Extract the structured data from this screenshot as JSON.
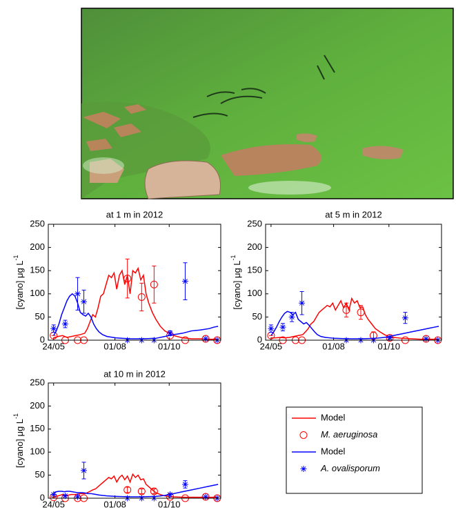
{
  "chart_data": [
    {
      "type": "line",
      "title": "at 1 m in 2012",
      "ylabel": "[cyano] μg L",
      "ylabel_superscript": "-1",
      "xlim": [
        139,
        333
      ],
      "xticks": [
        {
          "value": 145,
          "label": "24/05"
        },
        {
          "value": 214,
          "label": "01/08"
        },
        {
          "value": 275,
          "label": "01/10"
        }
      ],
      "ylim": [
        0,
        250
      ],
      "yticks": [
        0,
        50,
        100,
        150,
        200,
        250
      ],
      "grid": false,
      "series": [
        {
          "color": "#ff0000",
          "style": "line",
          "x": [
            145,
            150,
            155,
            160,
            165,
            170,
            175,
            180,
            183,
            186,
            189,
            192,
            195,
            198,
            201,
            204,
            207,
            210,
            213,
            216,
            219,
            222,
            225,
            228,
            231,
            234,
            237,
            240,
            243,
            246,
            249,
            252,
            256,
            260,
            265,
            270,
            275,
            280,
            290,
            300,
            310,
            320,
            330
          ],
          "values": [
            5,
            8,
            10,
            6,
            8,
            10,
            12,
            15,
            25,
            40,
            55,
            50,
            70,
            95,
            100,
            120,
            140,
            135,
            145,
            110,
            140,
            150,
            120,
            140,
            100,
            150,
            145,
            155,
            130,
            140,
            100,
            80,
            60,
            45,
            30,
            20,
            15,
            10,
            5,
            3,
            3,
            2,
            2
          ]
        },
        {
          "color": "#ff0000",
          "style": "circle",
          "x": [
            145,
            158,
            172,
            179,
            228,
            244,
            258,
            276,
            293,
            316,
            329
          ],
          "values": [
            10,
            0,
            0,
            0,
            133,
            93,
            120,
            10,
            0,
            3,
            0
          ],
          "errors": [
            0,
            0,
            0,
            0,
            42,
            30,
            40,
            0,
            0,
            0,
            0
          ]
        },
        {
          "color": "#0000ff",
          "style": "line",
          "x": [
            145,
            148,
            151,
            154,
            157,
            160,
            163,
            166,
            169,
            172,
            175,
            178,
            181,
            184,
            187,
            190,
            193,
            196,
            200,
            205,
            215,
            230,
            245,
            260,
            270,
            280,
            290,
            300,
            310,
            320,
            325,
            330
          ],
          "values": [
            10,
            20,
            35,
            55,
            70,
            85,
            95,
            100,
            95,
            80,
            60,
            55,
            52,
            58,
            50,
            35,
            25,
            18,
            12,
            8,
            5,
            3,
            3,
            4,
            8,
            12,
            15,
            20,
            22,
            25,
            28,
            30
          ]
        },
        {
          "color": "#0000ff",
          "style": "asterisk",
          "x": [
            145,
            158,
            172,
            179,
            228,
            244,
            258,
            276,
            293,
            316,
            329
          ],
          "values": [
            25,
            35,
            100,
            83,
            0,
            0,
            0,
            15,
            127,
            3,
            0
          ],
          "errors": [
            8,
            8,
            35,
            25,
            0,
            0,
            0,
            5,
            40,
            0,
            0
          ]
        }
      ]
    },
    {
      "type": "line",
      "title": "at 5 m in 2012",
      "ylabel": "[cyano] μg L",
      "ylabel_superscript": "-1",
      "xlim": [
        139,
        333
      ],
      "xticks": [
        {
          "value": 145,
          "label": "24/05"
        },
        {
          "value": 214,
          "label": "01/08"
        },
        {
          "value": 275,
          "label": "01/10"
        }
      ],
      "ylim": [
        0,
        250
      ],
      "yticks": [
        0,
        50,
        100,
        150,
        200,
        250
      ],
      "grid": false,
      "series": [
        {
          "color": "#ff0000",
          "style": "line",
          "x": [
            145,
            150,
            155,
            160,
            165,
            170,
            175,
            180,
            183,
            186,
            189,
            192,
            195,
            198,
            201,
            204,
            207,
            210,
            213,
            216,
            219,
            222,
            225,
            228,
            231,
            234,
            237,
            240,
            243,
            246,
            249,
            252,
            256,
            260,
            265,
            270,
            275,
            280,
            290,
            300,
            310,
            320,
            330
          ],
          "values": [
            5,
            5,
            6,
            5,
            6,
            8,
            10,
            12,
            18,
            25,
            35,
            40,
            50,
            60,
            65,
            70,
            75,
            72,
            80,
            65,
            75,
            85,
            70,
            80,
            65,
            90,
            80,
            85,
            70,
            72,
            55,
            45,
            35,
            25,
            18,
            12,
            8,
            6,
            4,
            3,
            2,
            2,
            2
          ]
        },
        {
          "color": "#ff0000",
          "style": "circle",
          "x": [
            145,
            158,
            172,
            179,
            228,
            244,
            258,
            276,
            293,
            316,
            329
          ],
          "values": [
            10,
            0,
            0,
            0,
            65,
            60,
            10,
            5,
            0,
            3,
            0
          ],
          "errors": [
            0,
            0,
            0,
            0,
            15,
            15,
            8,
            0,
            0,
            0,
            0
          ]
        },
        {
          "color": "#0000ff",
          "style": "line",
          "x": [
            145,
            148,
            151,
            154,
            157,
            160,
            163,
            166,
            169,
            172,
            175,
            178,
            181,
            184,
            187,
            190,
            193,
            196,
            200,
            205,
            215,
            230,
            245,
            260,
            270,
            280,
            290,
            300,
            310,
            320,
            325,
            330
          ],
          "values": [
            10,
            18,
            28,
            40,
            50,
            58,
            62,
            60,
            55,
            60,
            45,
            40,
            35,
            38,
            32,
            25,
            18,
            12,
            8,
            6,
            4,
            3,
            3,
            4,
            6,
            10,
            14,
            18,
            22,
            26,
            28,
            30
          ]
        },
        {
          "color": "#0000ff",
          "style": "asterisk",
          "x": [
            145,
            158,
            168,
            179,
            228,
            244,
            258,
            276,
            293,
            316,
            329
          ],
          "values": [
            25,
            28,
            50,
            80,
            0,
            0,
            0,
            5,
            48,
            3,
            0
          ],
          "errors": [
            8,
            8,
            10,
            25,
            0,
            0,
            0,
            0,
            12,
            0,
            0
          ]
        }
      ]
    },
    {
      "type": "line",
      "title": "at 10 m in 2012",
      "ylabel": "[cyano] μg L",
      "ylabel_superscript": "-1",
      "xlim": [
        139,
        333
      ],
      "xticks": [
        {
          "value": 145,
          "label": "24/05"
        },
        {
          "value": 214,
          "label": "01/08"
        },
        {
          "value": 275,
          "label": "01/10"
        }
      ],
      "ylim": [
        0,
        250
      ],
      "yticks": [
        0,
        50,
        100,
        150,
        200,
        250
      ],
      "grid": false,
      "legend": "outside-right",
      "series": [
        {
          "name": "Model",
          "color": "#ff0000",
          "style": "line",
          "x": [
            145,
            150,
            155,
            160,
            165,
            170,
            175,
            180,
            183,
            186,
            189,
            192,
            195,
            198,
            201,
            204,
            207,
            210,
            213,
            216,
            219,
            222,
            225,
            228,
            231,
            234,
            237,
            240,
            243,
            246,
            249,
            252,
            256,
            260,
            265,
            270,
            275,
            280,
            290,
            300,
            310,
            320,
            330
          ],
          "values": [
            3,
            5,
            8,
            6,
            8,
            8,
            10,
            10,
            12,
            15,
            18,
            20,
            25,
            30,
            35,
            40,
            45,
            42,
            48,
            35,
            45,
            50,
            40,
            48,
            35,
            52,
            45,
            50,
            40,
            42,
            30,
            25,
            18,
            12,
            8,
            5,
            4,
            3,
            2,
            2,
            2,
            2,
            2
          ]
        },
        {
          "name": "M. aeruginosa",
          "color": "#ff0000",
          "style": "circle",
          "x": [
            145,
            158,
            172,
            179,
            228,
            244,
            258,
            276,
            293,
            316,
            329
          ],
          "values": [
            2,
            0,
            0,
            0,
            18,
            15,
            15,
            3,
            0,
            3,
            0
          ],
          "errors": [
            0,
            0,
            0,
            0,
            6,
            5,
            5,
            0,
            0,
            0,
            0
          ]
        },
        {
          "name": "Model",
          "color": "#0000ff",
          "style": "line",
          "x": [
            145,
            148,
            151,
            154,
            157,
            160,
            163,
            166,
            169,
            172,
            175,
            178,
            181,
            184,
            187,
            190,
            193,
            196,
            200,
            205,
            215,
            230,
            245,
            260,
            270,
            280,
            290,
            300,
            310,
            320,
            325,
            330
          ],
          "values": [
            12,
            14,
            15,
            15,
            14,
            15,
            15,
            14,
            13,
            12,
            12,
            12,
            11,
            10,
            10,
            9,
            8,
            7,
            6,
            5,
            4,
            3,
            3,
            4,
            6,
            10,
            14,
            18,
            22,
            26,
            28,
            30
          ]
        },
        {
          "name": "A. ovalisporum",
          "color": "#0000ff",
          "style": "asterisk",
          "x": [
            145,
            158,
            172,
            179,
            228,
            244,
            258,
            276,
            293,
            316,
            329
          ],
          "values": [
            8,
            5,
            3,
            60,
            0,
            0,
            0,
            8,
            30,
            3,
            0
          ],
          "errors": [
            0,
            0,
            0,
            18,
            0,
            0,
            0,
            0,
            8,
            0,
            0
          ]
        }
      ]
    }
  ]
}
